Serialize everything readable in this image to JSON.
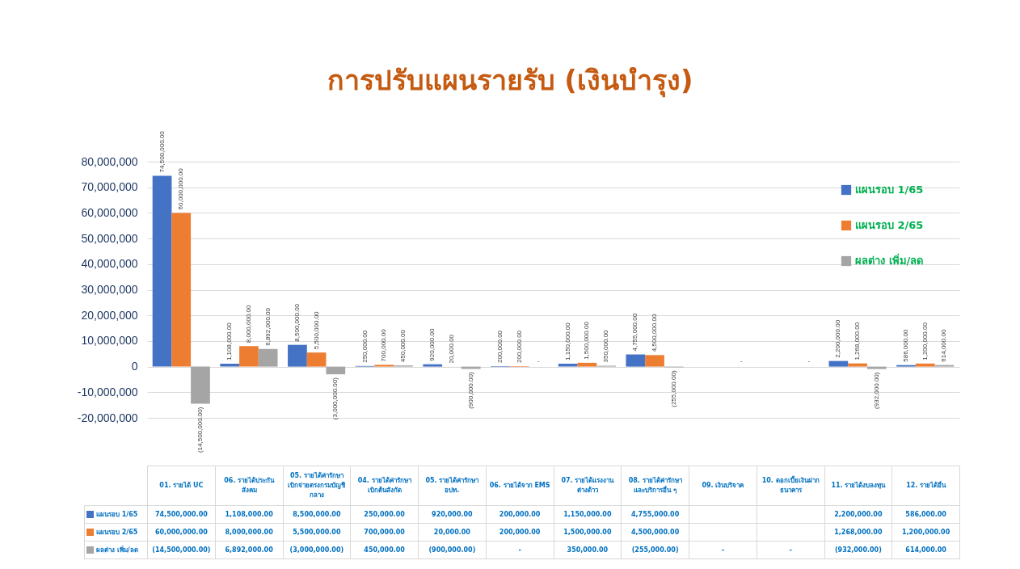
{
  "chart_data": {
    "type": "bar",
    "title": "การปรับแผนรายรับ (เงินบำรุง)",
    "categories": [
      "01. รายได้ UC",
      "06. รายได้ประกันสังคม",
      "05. รายได้ค่ารักษาเบิกจ่ายตรงกรมบัญชีกลาง",
      "04. รายได้ค่ารักษาเบิกต้นสังกัด",
      "05. รายได้ค่ารักษาอปท.",
      "06. รายได้จาก EMS",
      "07. รายได้แรงงานต่างด้าว",
      "08. รายได้ค่ารักษาและบริการอื่น ๆ",
      "09. เงินบริจาค",
      "10. ดอกเบี้ยเงินฝากธนาคาร",
      "11. รายได้งบลงทุน",
      "12. รายได้อื่น"
    ],
    "series": [
      {
        "name": "แผนรอบ 1/65",
        "color": "#4472c4",
        "values": [
          74500000,
          1108000,
          8500000,
          250000,
          920000,
          200000,
          1150000,
          4755000,
          null,
          null,
          2200000,
          586000
        ],
        "value_labels": [
          "74,500,000.00",
          "1,108,000.00",
          "8,500,000.00",
          "250,000.00",
          "920,000.00",
          "200,000.00",
          "1,150,000.00",
          "4,755,000.00",
          null,
          null,
          "2,200,000.00",
          "586,000.00"
        ]
      },
      {
        "name": "แผนรอบ 2/65",
        "color": "#ed7d31",
        "values": [
          60000000,
          8000000,
          5500000,
          700000,
          20000,
          200000,
          1500000,
          4500000,
          null,
          null,
          1268000,
          1200000
        ],
        "value_labels": [
          "60,000,000.00",
          "8,000,000.00",
          "5,500,000.00",
          "700,000.00",
          "20,000.00",
          "200,000.00",
          "1,500,000.00",
          "4,500,000.00",
          null,
          null,
          "1,268,000.00",
          "1,200,000.00"
        ]
      },
      {
        "name": "ผลต่าง เพิ่ม/ลด",
        "color": "#a5a5a5",
        "values": [
          -14500000,
          6892000,
          -3000000,
          450000,
          -900000,
          0,
          350000,
          -255000,
          0,
          0,
          -932000,
          614000
        ],
        "value_labels": [
          "(14,500,000.00)",
          "6,892,000.00",
          "(3,000,000.00)",
          "450,000.00",
          "(900,000.00)",
          "-",
          "350,000.00",
          "(255,000.00)",
          "-",
          "-",
          "(932,000.00)",
          "614,000.00"
        ]
      }
    ],
    "ylim": [
      -20000000,
      80000000
    ],
    "yticks": [
      {
        "value": -20000000,
        "label": "-20,000,000"
      },
      {
        "value": -10000000,
        "label": "-10,000,000"
      },
      0,
      {
        "value": 10000000,
        "label": "10,000,000"
      },
      {
        "value": 20000000,
        "label": "20,000,000"
      },
      {
        "value": 30000000,
        "label": "30,000,000"
      },
      {
        "value": 40000000,
        "label": "40,000,000"
      },
      {
        "value": 50000000,
        "label": "50,000,000"
      },
      {
        "value": 60000000,
        "label": "60,000,000"
      },
      {
        "value": 70000000,
        "label": "70,000,000"
      },
      {
        "value": 80000000,
        "label": "80,000,000"
      }
    ],
    "grid": "y",
    "legend": "top right"
  }
}
